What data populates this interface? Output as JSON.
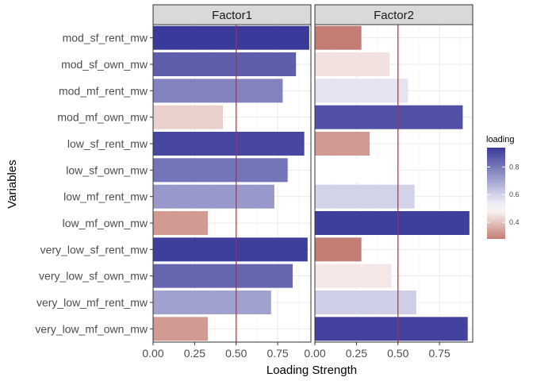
{
  "chart_data": {
    "type": "bar",
    "orientation": "horizontal",
    "xlabel": "Loading Strength",
    "ylabel": "Variables",
    "xlim": [
      0,
      0.95
    ],
    "x_ticks": [
      "0.00",
      "0.25",
      "0.50",
      "0.75"
    ],
    "x_tick_values": [
      0,
      0.25,
      0.5,
      0.75
    ],
    "reference_line": {
      "x": 0.5,
      "color": "#e31a1c"
    },
    "categories": [
      "mod_sf_rent_mw",
      "mod_sf_own_mw",
      "mod_mf_rent_mw",
      "mod_mf_own_mw",
      "low_sf_rent_mw",
      "low_sf_own_mw",
      "low_mf_rent_mw",
      "low_mf_own_mw",
      "very_low_sf_rent_mw",
      "very_low_sf_own_mw",
      "very_low_mf_rent_mw",
      "very_low_mf_own_mw"
    ],
    "series": [
      {
        "name": "Factor1",
        "values": [
          0.94,
          0.86,
          0.78,
          0.42,
          0.91,
          0.81,
          0.73,
          0.33,
          0.93,
          0.84,
          0.71,
          0.33
        ]
      },
      {
        "name": "Factor2",
        "values": [
          0.28,
          0.45,
          0.56,
          0.89,
          0.33,
          0.5,
          0.6,
          0.93,
          0.28,
          0.46,
          0.61,
          0.92
        ]
      }
    ],
    "grid": true,
    "legend": {
      "title": "loading",
      "position": "right",
      "type": "gradient",
      "ticks": [
        "0.4",
        "0.6",
        "0.8"
      ],
      "tick_values": [
        0.4,
        0.6,
        0.8
      ],
      "range": [
        0.28,
        0.94
      ],
      "colors": {
        "low": "#c47d74",
        "mid": "#ffffff",
        "high": "#3a3a9a",
        "midpoint": 0.5
      }
    }
  }
}
